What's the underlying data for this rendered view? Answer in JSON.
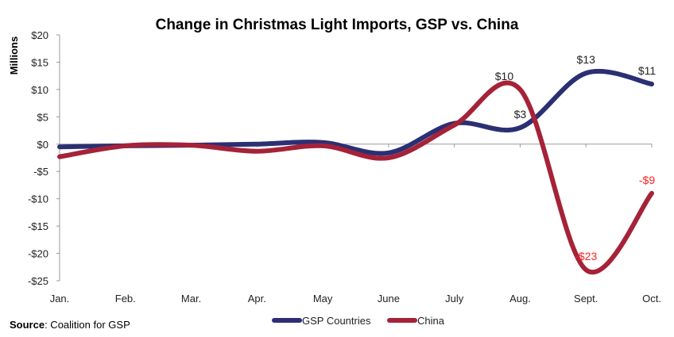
{
  "chart_data": {
    "type": "line",
    "title": "Change in Christmas Light Imports, GSP vs. China",
    "ylabel": "Millions",
    "xlabel": "",
    "categories": [
      "Jan.",
      "Feb.",
      "Mar.",
      "Apr.",
      "May",
      "June",
      "July",
      "Aug.",
      "Sept.",
      "Oct."
    ],
    "ylim": [
      -25,
      20
    ],
    "yticks": [
      20,
      15,
      10,
      5,
      0,
      -5,
      -10,
      -15,
      -20,
      -25
    ],
    "ytick_labels": [
      "$20",
      "$15",
      "$10",
      "$5",
      "$0",
      "-$5",
      "-$10",
      "-$15",
      "-$20",
      "-$25"
    ],
    "grid": false,
    "legend_position": "bottom",
    "smooth": true,
    "series": [
      {
        "name": "GSP Countries",
        "color": "#2b2f73",
        "values": [
          -0.5,
          -0.3,
          -0.2,
          0,
          0.3,
          -1.6,
          3.8,
          3,
          13,
          11
        ],
        "data_labels": [
          null,
          null,
          null,
          null,
          null,
          null,
          null,
          "$3",
          "$13",
          "$11"
        ],
        "label_color": "#222222"
      },
      {
        "name": "China",
        "color": "#a52238",
        "values": [
          -2.3,
          -0.3,
          -0.2,
          -1.3,
          -0.3,
          -2.5,
          3.5,
          10,
          -23,
          -9
        ],
        "data_labels": [
          null,
          null,
          null,
          null,
          null,
          null,
          null,
          "$10",
          "-$23",
          "-$9"
        ],
        "label_color": "#222222",
        "negative_label_color": "#ff2222"
      }
    ]
  },
  "source": {
    "label": "Source",
    "text": ": Coalition for GSP"
  }
}
